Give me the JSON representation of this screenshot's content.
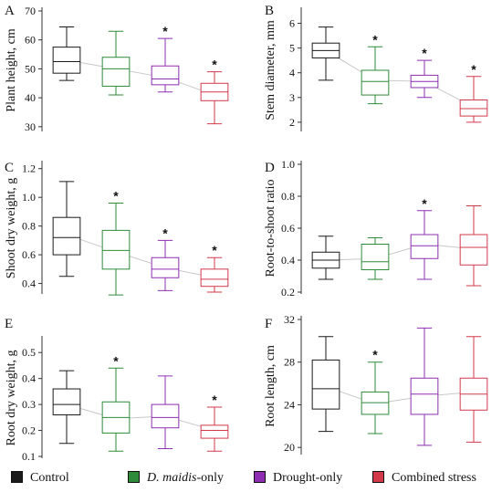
{
  "colors": {
    "control": "#1a1a1a",
    "dmaidis": "#2e8b3a",
    "drought": "#8e2fb3",
    "combined": "#d23a4a",
    "trend": "#c8c8c8"
  },
  "legend": {
    "items": [
      {
        "key": "control",
        "label_pre": "Control",
        "label_italic": "",
        "label_post": "",
        "color": "#1a1a1a"
      },
      {
        "key": "dmaidis",
        "label_pre": "",
        "label_italic": "D. maidis",
        "label_post": "-only",
        "color": "#2e8b3a"
      },
      {
        "key": "drought",
        "label_pre": "Drought-only",
        "label_italic": "",
        "label_post": "",
        "color": "#8e2fb3"
      },
      {
        "key": "combined",
        "label_pre": "Combined stress",
        "label_italic": "",
        "label_post": "",
        "color": "#d23a4a"
      }
    ]
  },
  "chart_data": [
    {
      "panel_letter": "A",
      "type": "box",
      "ylabel": "Plant height, cm",
      "ylim": [
        29,
        70
      ],
      "yticks": [
        30,
        40,
        50,
        60,
        70
      ],
      "groups": [
        "Control",
        "D. maidis-only",
        "Drought-only",
        "Combined stress"
      ],
      "boxes": [
        {
          "min": 46,
          "q1": 48.5,
          "median": 52.5,
          "q3": 57.5,
          "max": 64.5,
          "star": false
        },
        {
          "min": 41,
          "q1": 44,
          "median": 50,
          "q3": 54,
          "max": 63,
          "star": false
        },
        {
          "min": 42,
          "q1": 44.5,
          "median": 46.5,
          "q3": 51,
          "max": 60.5,
          "star": true
        },
        {
          "min": 31,
          "q1": 39,
          "median": 42,
          "q3": 45,
          "max": 49,
          "star": true
        }
      ],
      "trend": [
        53,
        50,
        47,
        41
      ]
    },
    {
      "panel_letter": "B",
      "type": "box",
      "ylabel": "Stem diameter, mm",
      "ylim": [
        1.7,
        6.5
      ],
      "yticks": [
        2,
        3,
        4,
        5,
        6
      ],
      "groups": [
        "Control",
        "D. maidis-only",
        "Drought-only",
        "Combined stress"
      ],
      "boxes": [
        {
          "min": 3.7,
          "q1": 4.6,
          "median": 4.9,
          "q3": 5.2,
          "max": 5.85,
          "star": false
        },
        {
          "min": 2.75,
          "q1": 3.1,
          "median": 3.65,
          "q3": 4.1,
          "max": 5.05,
          "star": true
        },
        {
          "min": 3.0,
          "q1": 3.4,
          "median": 3.65,
          "q3": 3.9,
          "max": 4.5,
          "star": true
        },
        {
          "min": 2.0,
          "q1": 2.25,
          "median": 2.55,
          "q3": 2.9,
          "max": 3.85,
          "star": true
        }
      ],
      "trend": [
        4.9,
        3.7,
        3.65,
        2.6
      ]
    },
    {
      "panel_letter": "C",
      "type": "box",
      "ylabel": "Shoot dry weight, g",
      "ylim": [
        0.34,
        1.23
      ],
      "yticks": [
        0.4,
        0.6,
        0.8,
        1.0,
        1.2
      ],
      "groups": [
        "Control",
        "D. maidis-only",
        "Drought-only",
        "Combined stress"
      ],
      "boxes": [
        {
          "min": 0.45,
          "q1": 0.6,
          "median": 0.72,
          "q3": 0.86,
          "max": 1.11,
          "star": false
        },
        {
          "min": 0.32,
          "q1": 0.5,
          "median": 0.63,
          "q3": 0.77,
          "max": 0.96,
          "star": true
        },
        {
          "min": 0.35,
          "q1": 0.44,
          "median": 0.5,
          "q3": 0.58,
          "max": 0.7,
          "star": true
        },
        {
          "min": 0.34,
          "q1": 0.38,
          "median": 0.43,
          "q3": 0.5,
          "max": 0.58,
          "star": true
        }
      ],
      "trend": [
        0.74,
        0.62,
        0.51,
        0.44
      ]
    },
    {
      "panel_letter": "D",
      "type": "box",
      "ylabel": "Root-to-shoot ratio",
      "ylim": [
        0.2,
        1.0
      ],
      "yticks": [
        0.2,
        0.4,
        0.6,
        0.8,
        1.0
      ],
      "groups": [
        "Control",
        "D. maidis-only",
        "Drought-only",
        "Combined stress"
      ],
      "boxes": [
        {
          "min": 0.28,
          "q1": 0.35,
          "median": 0.4,
          "q3": 0.45,
          "max": 0.55,
          "star": false
        },
        {
          "min": 0.28,
          "q1": 0.34,
          "median": 0.39,
          "q3": 0.5,
          "max": 0.54,
          "star": false
        },
        {
          "min": 0.28,
          "q1": 0.41,
          "median": 0.49,
          "q3": 0.56,
          "max": 0.71,
          "star": true
        },
        {
          "min": 0.24,
          "q1": 0.37,
          "median": 0.48,
          "q3": 0.56,
          "max": 0.74,
          "star": false
        }
      ],
      "trend": [
        0.4,
        0.41,
        0.5,
        0.47
      ]
    },
    {
      "panel_letter": "E",
      "type": "box",
      "ylabel": "Root dry weight, g",
      "ylim": [
        0.1,
        0.55
      ],
      "yticks": [
        0.1,
        0.2,
        0.3,
        0.4,
        0.5
      ],
      "groups": [
        "Control",
        "D. maidis-only",
        "Drought-only",
        "Combined stress"
      ],
      "boxes": [
        {
          "min": 0.15,
          "q1": 0.26,
          "median": 0.3,
          "q3": 0.36,
          "max": 0.43,
          "star": false
        },
        {
          "min": 0.12,
          "q1": 0.19,
          "median": 0.25,
          "q3": 0.31,
          "max": 0.44,
          "star": true
        },
        {
          "min": 0.13,
          "q1": 0.21,
          "median": 0.25,
          "q3": 0.3,
          "max": 0.41,
          "star": false
        },
        {
          "min": 0.12,
          "q1": 0.17,
          "median": 0.2,
          "q3": 0.22,
          "max": 0.29,
          "star": true
        }
      ],
      "trend": [
        0.3,
        0.245,
        0.255,
        0.2
      ]
    },
    {
      "panel_letter": "F",
      "type": "box",
      "ylabel": "Root length, cm",
      "ylim": [
        19.5,
        32
      ],
      "yticks": [
        20,
        24,
        28,
        32
      ],
      "groups": [
        "Control",
        "D. maidis-only",
        "Drought-only",
        "Combined stress"
      ],
      "boxes": [
        {
          "min": 21.5,
          "q1": 23.6,
          "median": 25.5,
          "q3": 28.2,
          "max": 30.4,
          "star": false
        },
        {
          "min": 21.3,
          "q1": 23.1,
          "median": 24.2,
          "q3": 25.2,
          "max": 28.0,
          "star": true
        },
        {
          "min": 20.2,
          "q1": 23.1,
          "median": 25.0,
          "q3": 26.5,
          "max": 31.2,
          "star": false
        },
        {
          "min": 20.5,
          "q1": 23.5,
          "median": 25.0,
          "q3": 26.5,
          "max": 30.4,
          "star": false
        }
      ],
      "trend": [
        25.7,
        24.1,
        24.8,
        25.2
      ]
    }
  ]
}
